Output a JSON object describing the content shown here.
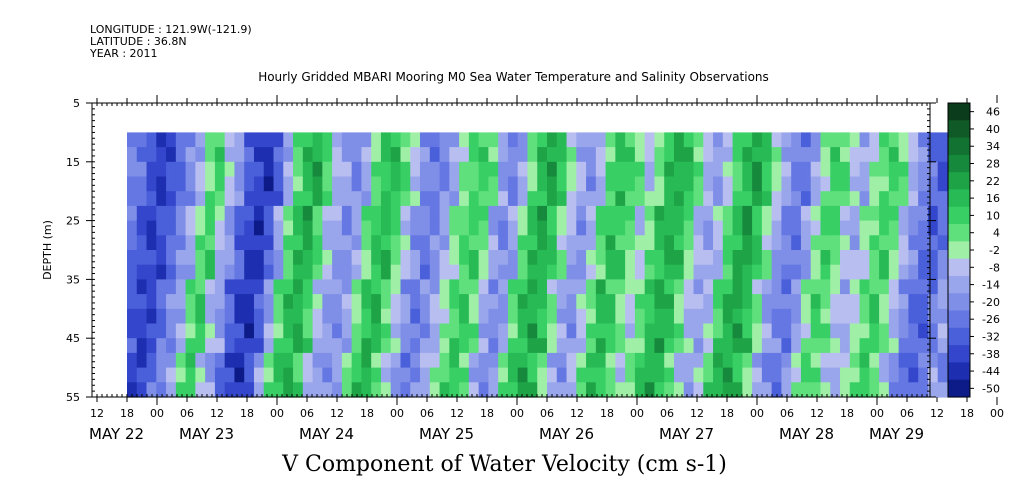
{
  "header": {
    "longitude": "LONGITUDE : 121.9W(-121.9)",
    "latitude": "LATITUDE : 36.8N",
    "year": "YEAR : 2011"
  },
  "chart_data": {
    "type": "heatmap",
    "title": "Hourly Gridded MBARI Mooring M0 Sea Water Temperature and Salinity Observations",
    "bottom_title": "V Component of Water Velocity (cm s-1)",
    "ylabel": "DEPTH (m)",
    "ylim": [
      5,
      55
    ],
    "y_inverted": true,
    "y_ticks": [
      "5",
      "15",
      "25",
      "35",
      "45",
      "55"
    ],
    "x_hour_ticks": [
      "12",
      "18",
      "00",
      "06",
      "12",
      "18",
      "00",
      "06",
      "12",
      "18",
      "00",
      "06",
      "12",
      "18",
      "00",
      "06",
      "12",
      "18",
      "00",
      "06",
      "12",
      "18",
      "00",
      "06",
      "12",
      "18",
      "00",
      "06",
      "12",
      "18",
      "00",
      "06"
    ],
    "x_date_labels": [
      "MAY 22",
      "MAY 23",
      "MAY 24",
      "MAY 25",
      "MAY 26",
      "MAY 27",
      "MAY 28",
      "MAY 29"
    ],
    "data_depth_range": [
      10,
      55
    ],
    "data_time_range_hours": [
      6,
      174
    ],
    "colorbar": {
      "labels": [
        "46",
        "40",
        "34",
        "28",
        "22",
        "16",
        "10",
        "4",
        "-2",
        "-8",
        "-14",
        "-20",
        "-26",
        "-32",
        "-38",
        "-44",
        "-50"
      ],
      "colors": [
        "#0b3d1c",
        "#0f5a27",
        "#127232",
        "#17893d",
        "#1ea447",
        "#28bb55",
        "#38d065",
        "#5fe07d",
        "#9ff0a6",
        "#b8bff0",
        "#9aa6ec",
        "#7f8fe8",
        "#6477e2",
        "#4a5fda",
        "#3447cc",
        "#1d2fb0",
        "#0c1b88"
      ]
    },
    "grid": false,
    "pattern_columns": [
      -20,
      -24,
      -32,
      -38,
      -34,
      -26,
      -18,
      -10,
      6,
      14,
      -6,
      -14,
      -28,
      -36,
      -40,
      -30,
      -12,
      8,
      18,
      22,
      10,
      -8,
      -14,
      -18,
      -12,
      4,
      16,
      20,
      8,
      -4,
      -16,
      -22,
      -18,
      -10,
      2,
      10,
      14,
      6,
      -12,
      -20,
      -14,
      6,
      18,
      24,
      16,
      2,
      -10,
      -16,
      -8,
      8,
      18,
      14,
      4,
      -6,
      4,
      16,
      22,
      18,
      6,
      -8,
      -14,
      -6,
      10,
      20,
      26,
      16,
      2,
      -12,
      -20,
      -24,
      -14,
      2,
      12,
      8,
      -4,
      -10,
      -2,
      8,
      14,
      4,
      -8,
      -18,
      -26,
      -30,
      -22,
      -10
    ]
  }
}
